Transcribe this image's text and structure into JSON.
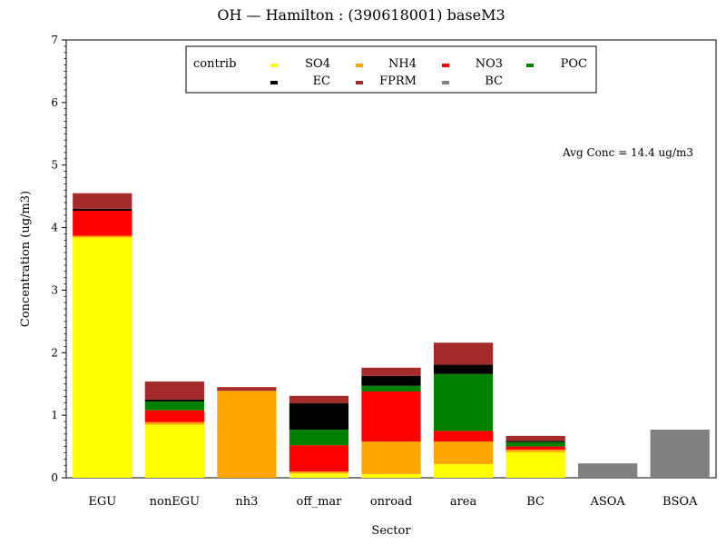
{
  "chart_data": {
    "type": "bar",
    "stacked": true,
    "title": "OH  —  Hamilton  :  (390618001)  baseM3",
    "xlabel": "Sector",
    "ylabel": "Concentration  (ug/m3)",
    "ylim": [
      0,
      7
    ],
    "yticks": [
      "0",
      "1",
      "2",
      "3",
      "4",
      "5",
      "6",
      "7"
    ],
    "annotation": "Avg Conc  =  14.4  ug/m3",
    "legend": {
      "title": "contrib",
      "placement": "top-center",
      "entries": [
        {
          "name": "SO4",
          "color": "#ffff00"
        },
        {
          "name": "NH4",
          "color": "#ffa500"
        },
        {
          "name": "NO3",
          "color": "#ff0000"
        },
        {
          "name": "POC",
          "color": "#008000"
        },
        {
          "name": "EC",
          "color": "#000000"
        },
        {
          "name": "FPRM",
          "color": "#a52a2a"
        },
        {
          "name": "BC",
          "color": "#808080"
        }
      ]
    },
    "categories": [
      "EGU",
      "nonEGU",
      "nh3",
      "off_mar",
      "onroad",
      "area",
      "BC",
      "ASOA",
      "BSOA"
    ],
    "series": [
      {
        "name": "SO4",
        "color": "#ffff00",
        "values": [
          3.84,
          0.85,
          0.0,
          0.07,
          0.06,
          0.22,
          0.41,
          0.0,
          0.0
        ]
      },
      {
        "name": "NH4",
        "color": "#ffa500",
        "values": [
          0.03,
          0.04,
          1.39,
          0.03,
          0.52,
          0.36,
          0.04,
          0.0,
          0.0
        ]
      },
      {
        "name": "NO3",
        "color": "#ff0000",
        "values": [
          0.4,
          0.19,
          0.0,
          0.42,
          0.8,
          0.17,
          0.05,
          0.0,
          0.0
        ]
      },
      {
        "name": "POC",
        "color": "#008000",
        "values": [
          0.0,
          0.14,
          0.0,
          0.25,
          0.09,
          0.91,
          0.07,
          0.0,
          0.0
        ]
      },
      {
        "name": "EC",
        "color": "#000000",
        "values": [
          0.03,
          0.03,
          0.0,
          0.42,
          0.16,
          0.15,
          0.02,
          0.0,
          0.0
        ]
      },
      {
        "name": "FPRM",
        "color": "#a52a2a",
        "values": [
          0.25,
          0.29,
          0.06,
          0.12,
          0.13,
          0.35,
          0.08,
          0.0,
          0.0
        ]
      },
      {
        "name": "BC",
        "color": "#808080",
        "values": [
          0.0,
          0.0,
          0.0,
          0.0,
          0.0,
          0.0,
          0.0,
          0.23,
          0.77
        ]
      }
    ]
  }
}
